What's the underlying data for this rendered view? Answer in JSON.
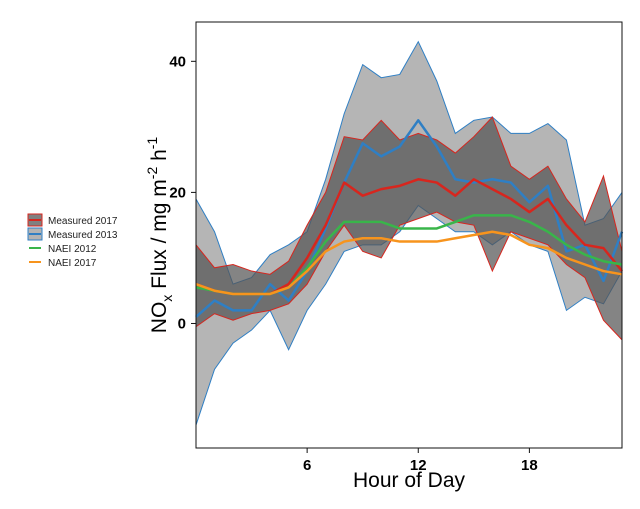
{
  "chart_data": {
    "type": "line",
    "xlabel": "Hour of Day",
    "ylabel": {
      "prefix": "NO",
      "sub": "x",
      "mid": " Flux / mg m",
      "sup1": "-2",
      "mid2": " h",
      "sup2": "-1"
    },
    "xlim": [
      0,
      23
    ],
    "ylim": [
      -19,
      46
    ],
    "xticks": [
      6,
      12,
      18
    ],
    "yticks": [
      0,
      20,
      40
    ],
    "grid": false,
    "legend_position": "left",
    "x": [
      0,
      1,
      2,
      3,
      4,
      5,
      6,
      7,
      8,
      9,
      10,
      11,
      12,
      13,
      14,
      15,
      16,
      17,
      18,
      19,
      20,
      21,
      22,
      23
    ],
    "series": [
      {
        "name": "Measured 2017",
        "color": "#d7261e",
        "fill": "#555555",
        "values": [
          6,
          5,
          4.5,
          4.5,
          4.5,
          6,
          10,
          15,
          21.5,
          19.5,
          20.5,
          21,
          22,
          21.5,
          19.5,
          22,
          20.5,
          19,
          17,
          19,
          15,
          12,
          11.5,
          8
        ],
        "lower": [
          -0.5,
          1.5,
          0.5,
          1.5,
          2,
          3,
          6,
          11,
          15,
          11,
          10,
          15,
          16,
          17,
          15.5,
          15,
          8,
          14,
          13,
          12,
          9,
          7,
          0.5,
          -2.5
        ],
        "upper": [
          12,
          8.5,
          9,
          8,
          7.5,
          9.5,
          15,
          20,
          28.5,
          28,
          31,
          28,
          29,
          28,
          26,
          28.5,
          31.5,
          24,
          22,
          24,
          19,
          15.5,
          22.5,
          11
        ]
      },
      {
        "name": "Measured 2013",
        "color": "#2f7fc4",
        "fill": "#999999",
        "values": [
          1,
          3.5,
          2,
          2,
          6,
          3.5,
          8,
          14.5,
          21.5,
          27.5,
          25.5,
          27,
          31,
          27,
          22,
          21.5,
          22,
          21.5,
          18.5,
          21,
          11,
          12,
          6.5,
          14
        ],
        "lower": [
          -15.5,
          -7,
          -3,
          -1,
          2,
          -4,
          2,
          6,
          11,
          12,
          12,
          14,
          18,
          16,
          14,
          14,
          12,
          14,
          12,
          11,
          2,
          4,
          3,
          8
        ],
        "upper": [
          19,
          14,
          6,
          7,
          10.5,
          12,
          14,
          22,
          32,
          39.5,
          37.5,
          38,
          43,
          37,
          29,
          31,
          31.5,
          29,
          29,
          30.5,
          28,
          15,
          16,
          20
        ]
      },
      {
        "name": "NAEI 2012",
        "color": "#39b54a",
        "values": [
          5.5,
          5,
          4.5,
          4.5,
          4.5,
          5.5,
          8.5,
          12.5,
          15.5,
          15.5,
          15.5,
          14.5,
          14.5,
          14.5,
          15.5,
          16.5,
          16.5,
          16.5,
          15.5,
          14,
          12,
          10.5,
          9.5,
          9
        ]
      },
      {
        "name": "NAEI 2017",
        "color": "#f7941d",
        "values": [
          6,
          5,
          4.5,
          4.5,
          4.5,
          5.5,
          8,
          11,
          12.5,
          13,
          13,
          12.5,
          12.5,
          12.5,
          13,
          13.5,
          14,
          13.5,
          12,
          11.5,
          10,
          9,
          8,
          7.5
        ]
      }
    ]
  }
}
